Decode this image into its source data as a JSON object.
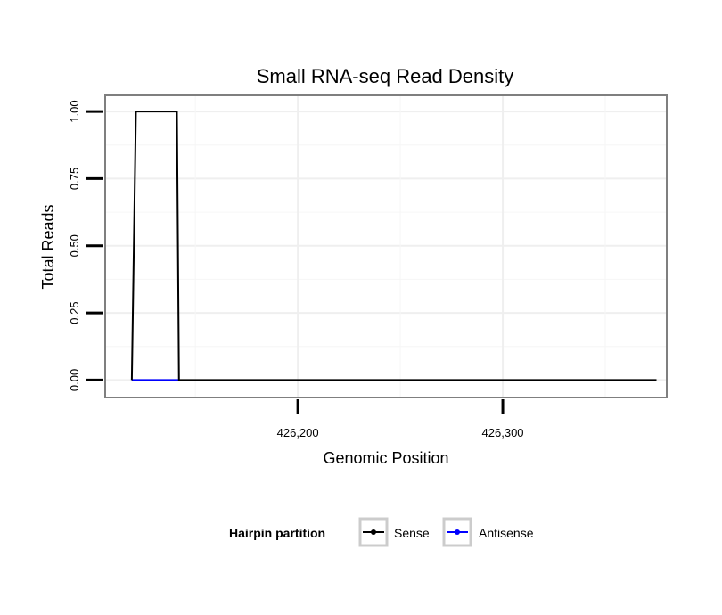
{
  "chart_data": {
    "type": "line",
    "title": "Small RNA-seq Read Density",
    "xlabel": "Genomic Position",
    "ylabel": "Total Reads",
    "xlim": [
      426106,
      426380
    ],
    "ylim": [
      -0.065,
      1.06
    ],
    "x_ticks": [
      {
        "value": 426200,
        "label": "426,200"
      },
      {
        "value": 426300,
        "label": "426,300"
      }
    ],
    "y_ticks": [
      {
        "value": 0.0,
        "label": "0.00"
      },
      {
        "value": 0.25,
        "label": "0.25"
      },
      {
        "value": 0.5,
        "label": "0.50"
      },
      {
        "value": 0.75,
        "label": "0.75"
      },
      {
        "value": 1.0,
        "label": "1.00"
      }
    ],
    "grid": true,
    "legend": {
      "title": "Hairpin partition",
      "position": "bottom"
    },
    "series": [
      {
        "name": "Sense",
        "color": "#000000",
        "x": [
          426119,
          426121,
          426141,
          426142,
          426375
        ],
        "y": [
          0,
          1,
          1,
          0,
          0
        ]
      },
      {
        "name": "Antisense",
        "color": "#0000ff",
        "x": [
          426119,
          426142
        ],
        "y": [
          0,
          0
        ]
      }
    ]
  }
}
